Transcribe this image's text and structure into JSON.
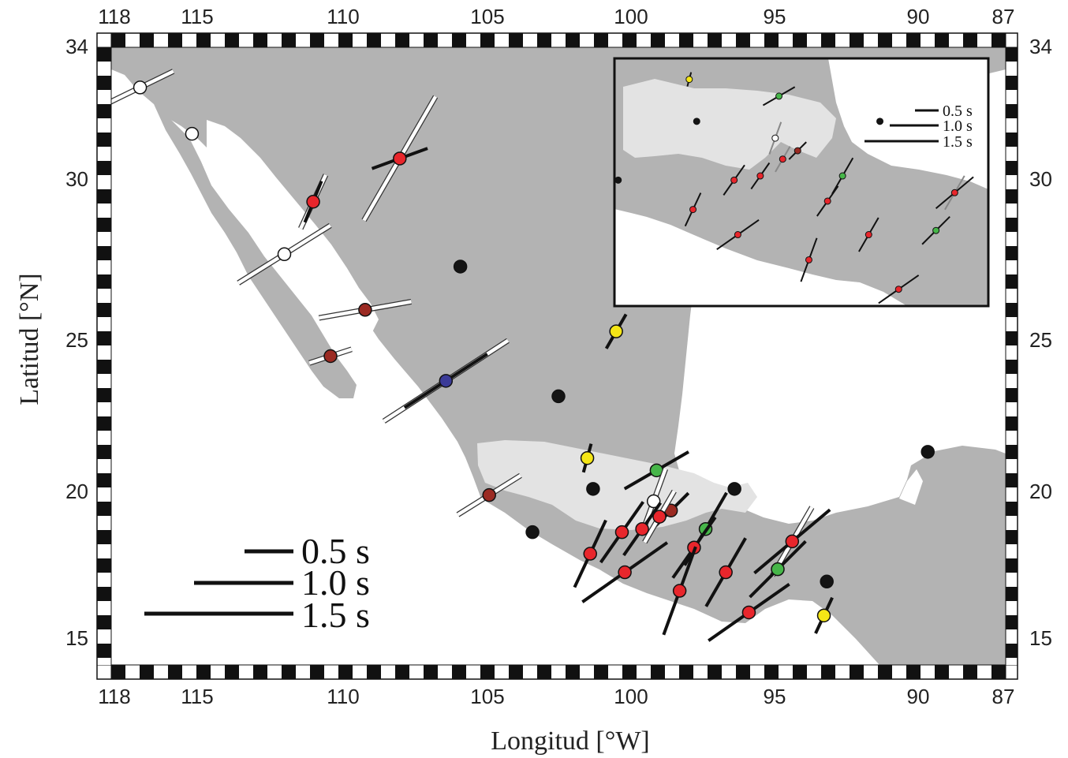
{
  "map": {
    "x_axis_title": "Longitud [°W]",
    "y_axis_title": "Latitud [°N]",
    "lon_range": [
      118,
      87
    ],
    "lat_range": [
      14,
      34
    ],
    "top_ticks": [
      "118",
      "115",
      "110",
      "105",
      "100",
      "95",
      "90",
      "87"
    ],
    "bottom_ticks": [
      "118",
      "115",
      "110",
      "105",
      "100",
      "95",
      "90",
      "87"
    ],
    "lat_ticks": [
      "34",
      "30",
      "25",
      "20",
      "15"
    ],
    "tick_lon_values": [
      118,
      115,
      110,
      105,
      100,
      95,
      90,
      87
    ],
    "tick_lat_values": [
      34,
      30,
      25,
      20,
      15
    ]
  },
  "legend": {
    "items": [
      {
        "label": "0.5 s",
        "delay": 0.5
      },
      {
        "label": "1.0 s",
        "delay": 1.0
      },
      {
        "label": "1.5 s",
        "delay": 1.5
      }
    ]
  },
  "inset_legend": {
    "items": [
      {
        "label": "0.5 s",
        "delay": 0.5
      },
      {
        "label": "1.0 s",
        "delay": 1.0
      },
      {
        "label": "1.5 s",
        "delay": 1.5
      }
    ]
  },
  "colors": {
    "land": "#b3b3b3",
    "transition_zone": "#e3e3e3",
    "sea": "#ffffff",
    "red": "#e8262c",
    "darkred": "#9b2a22",
    "yellow": "#f5e616",
    "green": "#46b649",
    "blue": "#3b3b98",
    "white": "#ffffff",
    "black": "#141414"
  },
  "stations": [
    {
      "lon": 117.0,
      "lat": 32.7,
      "color": "white",
      "bars": [
        {
          "az": 64,
          "dt": 0.75,
          "fill": "white"
        }
      ]
    },
    {
      "lon": 115.2,
      "lat": 31.2,
      "color": "white",
      "bars": []
    },
    {
      "lon": 108.0,
      "lat": 30.4,
      "color": "red",
      "bars": [
        {
          "az": 30,
          "dt": 1.45,
          "fill": "white"
        },
        {
          "az": 70,
          "dt": 0.6,
          "fill": "black"
        }
      ]
    },
    {
      "lon": 111.0,
      "lat": 29.0,
      "color": "red",
      "bars": [
        {
          "az": 25,
          "dt": 0.6,
          "fill": "white"
        },
        {
          "az": 22,
          "dt": 0.45,
          "fill": "black"
        }
      ]
    },
    {
      "lon": 112.0,
      "lat": 27.3,
      "color": "white",
      "bars": [
        {
          "az": 58,
          "dt": 1.1,
          "fill": "white"
        }
      ]
    },
    {
      "lon": 105.9,
      "lat": 26.9,
      "color": "black",
      "bars": []
    },
    {
      "lon": 109.2,
      "lat": 25.5,
      "color": "darkred",
      "bars": [
        {
          "az": 80,
          "dt": 0.95,
          "fill": "white"
        }
      ]
    },
    {
      "lon": 110.4,
      "lat": 24.0,
      "color": "darkred",
      "bars": [
        {
          "az": 72,
          "dt": 0.45,
          "fill": "white"
        }
      ]
    },
    {
      "lon": 100.5,
      "lat": 24.8,
      "color": "yellow",
      "bars": [
        {
          "az": 30,
          "dt": 0.4,
          "fill": "black"
        }
      ]
    },
    {
      "lon": 106.4,
      "lat": 23.2,
      "color": "blue",
      "bars": [
        {
          "az": 57,
          "dt": 1.5,
          "fill": "white"
        },
        {
          "az": 57,
          "dt": 1.0,
          "fill": "black"
        }
      ]
    },
    {
      "lon": 102.5,
      "lat": 22.7,
      "color": "black",
      "bars": []
    },
    {
      "lon": 101.5,
      "lat": 20.7,
      "color": "yellow",
      "bars": [
        {
          "az": 15,
          "dt": 0.3,
          "fill": "black"
        }
      ]
    },
    {
      "lon": 101.3,
      "lat": 19.7,
      "color": "black",
      "bars": []
    },
    {
      "lon": 104.9,
      "lat": 19.5,
      "color": "darkred",
      "bars": [
        {
          "az": 58,
          "dt": 0.75,
          "fill": "white"
        }
      ]
    },
    {
      "lon": 103.4,
      "lat": 18.3,
      "color": "black",
      "bars": []
    },
    {
      "lon": 99.1,
      "lat": 20.3,
      "color": "green",
      "bars": [
        {
          "az": 60,
          "dt": 0.75,
          "fill": "black"
        }
      ]
    },
    {
      "lon": 99.2,
      "lat": 19.3,
      "color": "white",
      "bars": [
        {
          "az": 20,
          "dt": 0.7,
          "fill": "white"
        }
      ]
    },
    {
      "lon": 96.4,
      "lat": 19.7,
      "color": "black",
      "bars": []
    },
    {
      "lon": 98.6,
      "lat": 19.0,
      "color": "darkred",
      "bars": [
        {
          "az": 45,
          "dt": 0.5,
          "fill": "black"
        }
      ]
    },
    {
      "lon": 99.0,
      "lat": 18.8,
      "color": "red",
      "bars": [
        {
          "az": 30,
          "dt": 0.6,
          "fill": "white"
        }
      ]
    },
    {
      "lon": 99.6,
      "lat": 18.4,
      "color": "red",
      "bars": [
        {
          "az": 35,
          "dt": 0.65,
          "fill": "black"
        }
      ]
    },
    {
      "lon": 100.3,
      "lat": 18.3,
      "color": "red",
      "bars": [
        {
          "az": 35,
          "dt": 0.75,
          "fill": "black"
        }
      ]
    },
    {
      "lon": 97.4,
      "lat": 18.4,
      "color": "green",
      "bars": [
        {
          "az": 30,
          "dt": 0.85,
          "fill": "black"
        }
      ]
    },
    {
      "lon": 101.4,
      "lat": 17.6,
      "color": "red",
      "bars": [
        {
          "az": 25,
          "dt": 0.75,
          "fill": "black"
        }
      ]
    },
    {
      "lon": 97.8,
      "lat": 17.8,
      "color": "red",
      "bars": [
        {
          "az": 35,
          "dt": 0.75,
          "fill": "black"
        }
      ]
    },
    {
      "lon": 100.2,
      "lat": 17.0,
      "color": "red",
      "bars": [
        {
          "az": 55,
          "dt": 1.05,
          "fill": "black"
        }
      ]
    },
    {
      "lon": 96.7,
      "lat": 17.0,
      "color": "red",
      "bars": [
        {
          "az": 30,
          "dt": 0.8,
          "fill": "black"
        }
      ]
    },
    {
      "lon": 94.4,
      "lat": 18.0,
      "color": "red",
      "bars": [
        {
          "az": 30,
          "dt": 0.8,
          "fill": "white"
        },
        {
          "az": 50,
          "dt": 1.0,
          "fill": "black"
        }
      ]
    },
    {
      "lon": 94.9,
      "lat": 17.1,
      "color": "green",
      "bars": [
        {
          "az": 45,
          "dt": 0.8,
          "fill": "black"
        }
      ]
    },
    {
      "lon": 98.3,
      "lat": 16.4,
      "color": "red",
      "bars": [
        {
          "az": 20,
          "dt": 0.95,
          "fill": "black"
        }
      ]
    },
    {
      "lon": 95.9,
      "lat": 15.7,
      "color": "red",
      "bars": [
        {
          "az": 55,
          "dt": 1.0,
          "fill": "black"
        }
      ]
    },
    {
      "lon": 93.2,
      "lat": 16.7,
      "color": "black",
      "bars": []
    },
    {
      "lon": 93.3,
      "lat": 15.6,
      "color": "yellow",
      "bars": [
        {
          "az": 25,
          "dt": 0.4,
          "fill": "black"
        }
      ]
    },
    {
      "lon": 89.7,
      "lat": 20.9,
      "color": "black",
      "bars": []
    }
  ]
}
